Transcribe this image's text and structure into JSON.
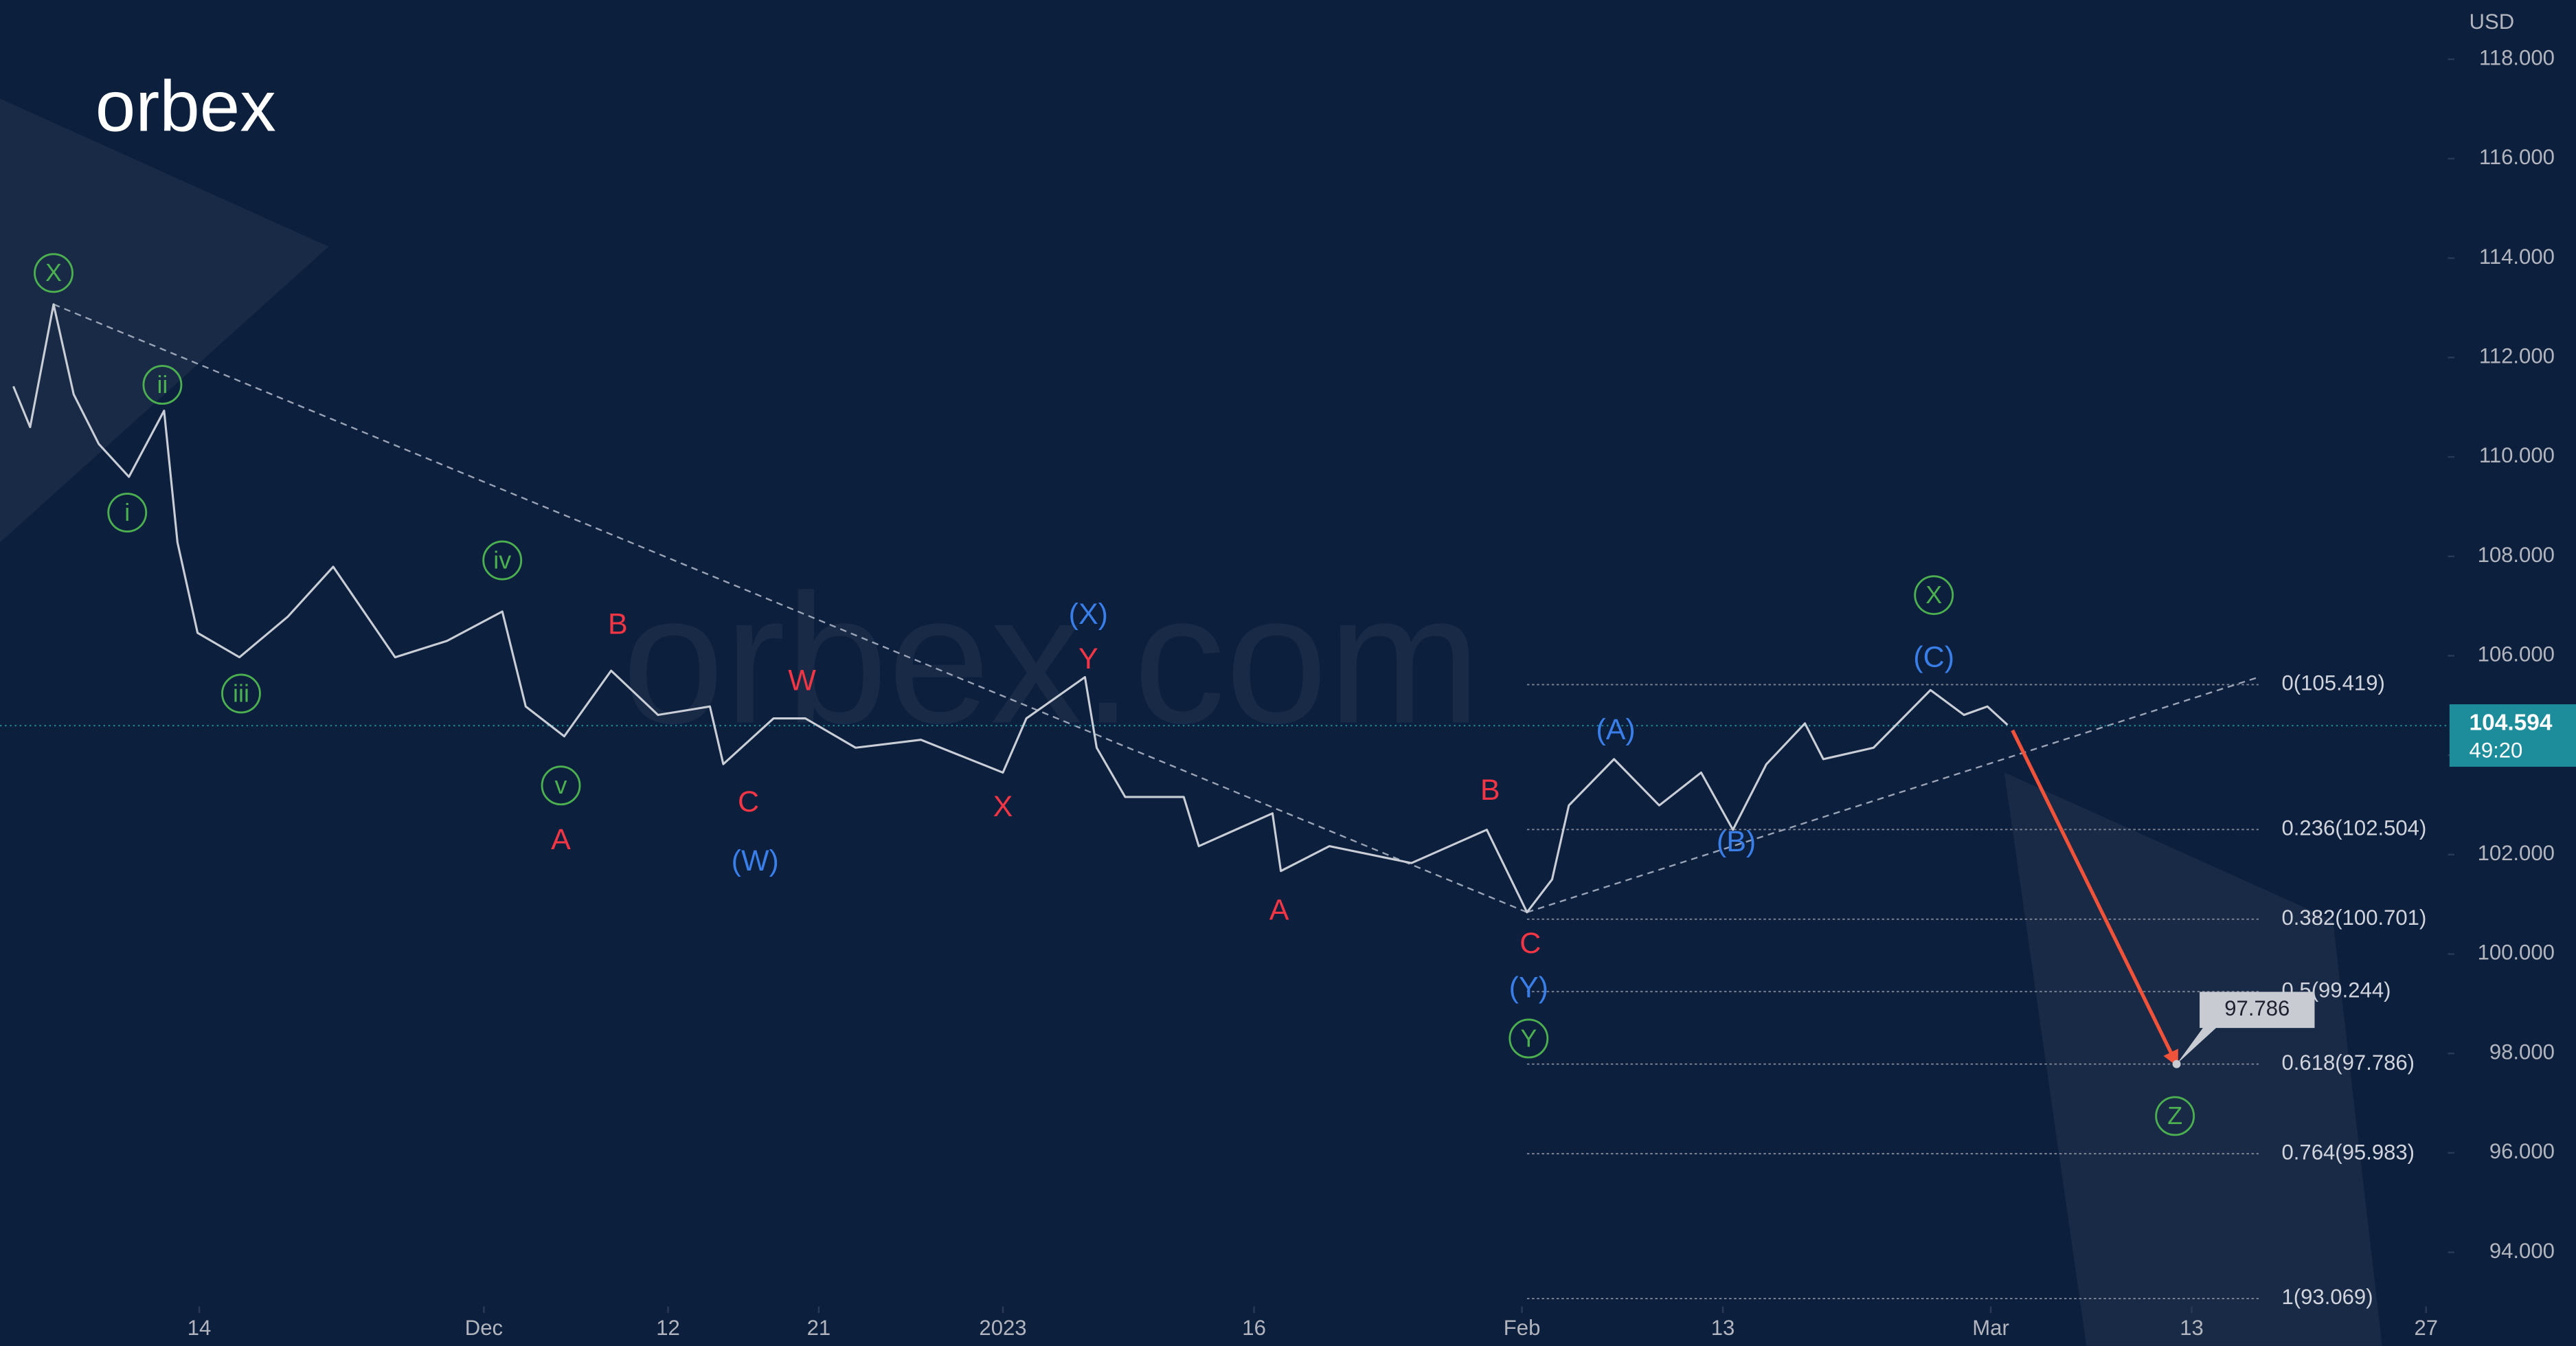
{
  "chart_data": {
    "type": "line",
    "logo": "orbex",
    "watermark": "orbex.com",
    "currency": "USD",
    "background": "#0c1f3d",
    "series": [
      {
        "color": "#c9cdd6",
        "x": [
          1.9,
          2.9,
          4.3,
          5.5,
          7.0,
          8.8,
          10.9,
          11.7,
          12.9,
          15.4,
          18.3,
          21.0,
          24.7,
          27.8,
          31.1,
          32.5,
          34.8,
          37.6,
          40.4,
          43.5,
          44.3,
          47.3,
          49.2,
          52.2,
          56.1,
          61.0,
          62.4,
          65.9,
          66.6,
          68.3,
          71.8,
          72.7,
          77.1,
          77.6,
          80.5,
          85.4,
          89.9,
          92.3,
          93.8,
          94.8,
          97.5,
          100.2,
          102.7,
          104.6,
          106.6,
          108.9,
          110.0,
          113.0,
          116.4,
          118.4,
          119.8,
          121.0
        ],
        "values": [
          111.42,
          110.6,
          113.07,
          111.26,
          110.26,
          109.6,
          110.93,
          108.28,
          106.46,
          105.97,
          106.79,
          107.79,
          105.97,
          106.3,
          106.89,
          104.98,
          104.38,
          105.7,
          104.81,
          104.98,
          103.82,
          104.74,
          104.74,
          104.15,
          104.31,
          103.65,
          104.74,
          105.57,
          104.15,
          103.16,
          103.16,
          102.17,
          102.83,
          101.67,
          102.17,
          101.83,
          102.5,
          100.84,
          101.5,
          102.99,
          103.92,
          102.99,
          103.65,
          102.5,
          103.82,
          104.64,
          103.92,
          104.15,
          105.31,
          104.81,
          104.98,
          104.61
        ]
      }
    ],
    "last_price": {
      "value": 104.594,
      "label": "104.594",
      "countdown": "49:20",
      "color": "#1d8c9b"
    },
    "xlim": [
      1.1,
      147.3
    ],
    "ylim": [
      92.91,
      119.19
    ],
    "xticks": [
      {
        "value": 13,
        "label": "14"
      },
      {
        "value": 30,
        "label": "Dec"
      },
      {
        "value": 41,
        "label": "12"
      },
      {
        "value": 50,
        "label": "21"
      },
      {
        "value": 61,
        "label": "2023"
      },
      {
        "value": 76,
        "label": "16"
      },
      {
        "value": 92,
        "label": "Feb"
      },
      {
        "value": 104,
        "label": "13"
      },
      {
        "value": 120,
        "label": "Mar"
      },
      {
        "value": 132,
        "label": "13"
      },
      {
        "value": 146,
        "label": "27"
      }
    ],
    "yticks": [
      {
        "value": 94,
        "label": "94.000"
      },
      {
        "value": 96,
        "label": "96.000"
      },
      {
        "value": 98,
        "label": "98.000"
      },
      {
        "value": 100,
        "label": "100.000"
      },
      {
        "value": 102,
        "label": "102.000"
      },
      {
        "value": 104,
        "label": "104.000"
      },
      {
        "value": 106,
        "label": "106.000"
      },
      {
        "value": 108,
        "label": "108.000"
      },
      {
        "value": 110,
        "label": "110.000"
      },
      {
        "value": 112,
        "label": "112.000"
      },
      {
        "value": 114,
        "label": "114.000"
      },
      {
        "value": 116,
        "label": "116.000"
      },
      {
        "value": 118,
        "label": "118.000"
      }
    ],
    "fib_levels": {
      "x_start": 92.3,
      "x_end": 136.0,
      "color": "#7d8494",
      "levels": [
        {
          "value": 105.419,
          "label": "0(105.419)"
        },
        {
          "value": 102.504,
          "label": "0.236(102.504)"
        },
        {
          "value": 100.701,
          "label": "0.382(100.701)"
        },
        {
          "value": 99.244,
          "label": "0.5(99.244)"
        },
        {
          "value": 97.786,
          "label": "0.618(97.786)"
        },
        {
          "value": 95.983,
          "label": "0.764(95.983)"
        },
        {
          "value": 93.069,
          "label": "1(93.069)"
        }
      ]
    },
    "trendlines": [
      {
        "color": "#9aa3b5",
        "x": [
          4.3,
          92.3
        ],
        "y": [
          113.07,
          100.84
        ]
      },
      {
        "color": "#9aa3b5",
        "x": [
          92.3,
          136.0
        ],
        "y": [
          100.84,
          105.57
        ]
      }
    ],
    "forecast": {
      "color": "#f0523a",
      "x": [
        121.3,
        131.1
      ],
      "y": [
        104.5,
        97.786
      ],
      "label": "97.786"
    },
    "annotations": [
      {
        "text": "X",
        "x": 4.3,
        "y": 113.7,
        "color": "#4caf50",
        "circled": true
      },
      {
        "text": "ii",
        "x": 10.8,
        "y": 111.45,
        "color": "#4caf50",
        "circled": true
      },
      {
        "text": "i",
        "x": 8.7,
        "y": 108.88,
        "color": "#4caf50",
        "circled": true
      },
      {
        "text": "iii",
        "x": 15.5,
        "y": 105.24,
        "color": "#4caf50",
        "circled": true
      },
      {
        "text": "iv",
        "x": 31.1,
        "y": 107.92,
        "color": "#4caf50",
        "circled": true
      },
      {
        "text": "v",
        "x": 34.6,
        "y": 103.39,
        "color": "#4caf50",
        "circled": true
      },
      {
        "text": "A",
        "x": 34.6,
        "y": 102.3,
        "color": "#f23645",
        "circled": false
      },
      {
        "text": "B",
        "x": 38.0,
        "y": 106.63,
        "color": "#f23645",
        "circled": false
      },
      {
        "text": "W",
        "x": 49.0,
        "y": 105.5,
        "color": "#f23645",
        "circled": false
      },
      {
        "text": "C",
        "x": 45.8,
        "y": 103.06,
        "color": "#f23645",
        "circled": false
      },
      {
        "text": "(W)",
        "x": 46.2,
        "y": 101.87,
        "color": "#3a7ee8",
        "circled": false
      },
      {
        "text": "X",
        "x": 61.0,
        "y": 102.96,
        "color": "#f23645",
        "circled": false
      },
      {
        "text": "(X)",
        "x": 66.1,
        "y": 106.83,
        "color": "#3a7ee8",
        "circled": false
      },
      {
        "text": "Y",
        "x": 66.1,
        "y": 105.93,
        "color": "#f23645",
        "circled": false
      },
      {
        "text": "A",
        "x": 77.5,
        "y": 100.88,
        "color": "#f23645",
        "circled": false
      },
      {
        "text": "B",
        "x": 90.1,
        "y": 103.29,
        "color": "#f23645",
        "circled": false
      },
      {
        "text": "C",
        "x": 92.5,
        "y": 100.21,
        "color": "#f23645",
        "circled": false
      },
      {
        "text": "(Y)",
        "x": 92.4,
        "y": 99.32,
        "color": "#3a7ee8",
        "circled": false
      },
      {
        "text": "Y",
        "x": 92.4,
        "y": 98.3,
        "color": "#4caf50",
        "circled": true
      },
      {
        "text": "(A)",
        "x": 97.6,
        "y": 104.51,
        "color": "#3a7ee8",
        "circled": false
      },
      {
        "text": "(B)",
        "x": 104.8,
        "y": 102.26,
        "color": "#3a7ee8",
        "circled": false
      },
      {
        "text": "(C)",
        "x": 116.6,
        "y": 105.97,
        "color": "#3a7ee8",
        "circled": false
      },
      {
        "text": "X",
        "x": 116.6,
        "y": 107.22,
        "color": "#4caf50",
        "circled": true
      },
      {
        "text": "Z",
        "x": 131.0,
        "y": 96.74,
        "color": "#4caf50",
        "circled": true
      }
    ]
  }
}
